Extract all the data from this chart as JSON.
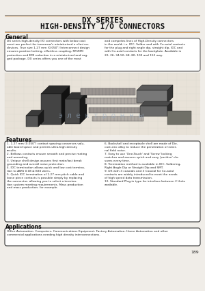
{
  "title_line1": "DX SERIES",
  "title_line2": "HIGH-DENSITY I/O CONNECTORS",
  "section_general": "General",
  "gen_left": "DX series high-density I/O connectors with below cost\nment are perfect for tomorrow's miniaturized e elimi na-\ndevices. True size 1.27 mm (0.050\") Interconnect design\nensures positive locking, effortless coupling, RFI/EMI\nprotection and EMI reduction in a miniaturized and rug-\nged package. DX series offers you one of the most",
  "gen_right": "and competes lines of High-Density connectors\nin the world, i.e. IDC, Solder and with Co-axial contacts\nfor the plug and right angle dip, straight dip, IDC and\nwith Co-axial contacts for the backplate. Available in\n20, 26, 34,50, 68, 80, 100 and 152 way.",
  "section_features": "Features",
  "features_left": [
    "1.27 mm (0.050\") contact spacing conserves valu-\nable board space and permits ultra-high density\nresults.",
    "Bellows contacts ensure smooth and precise mating\nand unmating.",
    "Unique shell design assures first mate/last break\ngrounding and overall noise protection.",
    "IDC termination allows quick and low cost termina-\ntion to AWG 0.08 & B30 wires.",
    "Quick IDC termination of 1.27 mm pitch cable and\nloose piece contacts is possible simply by replacing\nthe connector, allowing you to select a termina-\ntion system meeting requirements. Mass production\nand mass production, for example."
  ],
  "features_right": [
    "Backshell and receptacle shell are made of Die-\ncast zinc alloy to reduce the penetration of exter-\nnal field noise.",
    "Easy to use 'One-Touch' and 'Screw' locking\nmatches and assures quick and easy 'positive' clo-\nsures every time.",
    "Termination method is available in IDC, Soldering,\nRight Angle Dip or Straight Dip and SMT.",
    "DX with 3 coaxials and 3 Coaxial for Co-axial\ncontacts are widely introduced to meet the needs\nof high speed data transmission.",
    "Standard Plug-in type for interface between 2 Units\navailable."
  ],
  "section_applications": "Applications",
  "applications_text": "Office Automation, Computers, Communications Equipment, Factory Automation, Home Automation and other\ncommercial applications needing high density interconnections.",
  "page_number": "189",
  "bg_color": "#f0ede8",
  "white": "#ffffff",
  "title_color": "#111111",
  "text_color": "#222222",
  "dark_color": "#111111",
  "line_color": "#888888",
  "orange_color": "#b86000"
}
